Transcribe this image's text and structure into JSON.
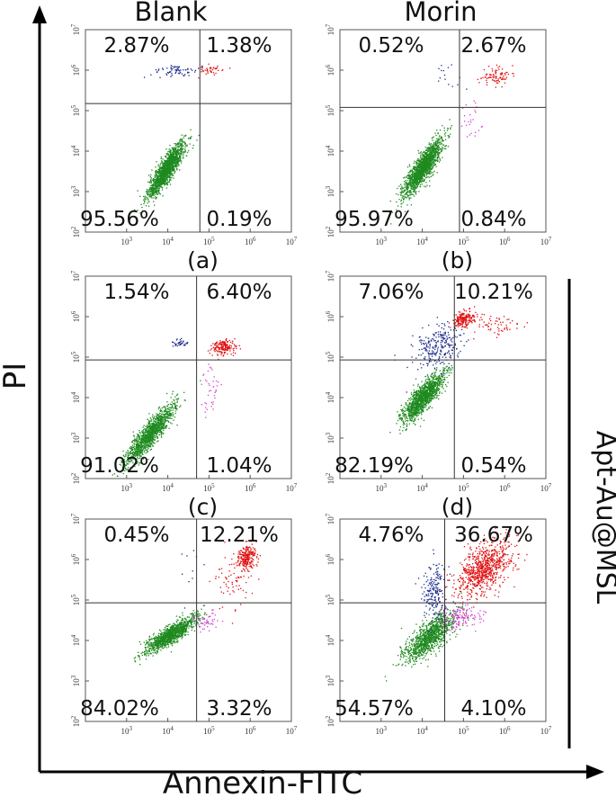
{
  "figure": {
    "y_axis_label": "PI",
    "x_axis_label": "Annexin-FITC",
    "side_label": "Apt-Au@MSL",
    "column_titles": [
      "Blank",
      "Morin"
    ]
  },
  "colors": {
    "live": "#1f8a1f",
    "late_apoptotic": "#e01010",
    "necrotic": "#1a2a8a",
    "early_apoptotic": "#d040d0",
    "axis": "#000000"
  },
  "chart_data": [
    {
      "type": "scatter",
      "panel_label": "(a)",
      "column_title": "Blank",
      "x_scale": "log",
      "y_scale": "log",
      "xlim": [
        100,
        10000000
      ],
      "ylim": [
        100,
        10000000
      ],
      "quadrant_gate": {
        "x": 60000,
        "y": 150000
      },
      "quadrants": {
        "upper_left": "2.87%",
        "upper_right": "1.38%",
        "lower_left": "95.56%",
        "lower_right": "0.19%"
      },
      "x_ticks": [
        "3",
        "4",
        "5",
        "6",
        "7"
      ],
      "y_ticks": [
        "2",
        "3",
        "4",
        "5",
        "6",
        "7"
      ]
    },
    {
      "type": "scatter",
      "panel_label": "(b)",
      "column_title": "Morin",
      "x_scale": "log",
      "y_scale": "log",
      "xlim": [
        100,
        10000000
      ],
      "ylim": [
        100,
        10000000
      ],
      "quadrant_gate": {
        "x": 80000,
        "y": 120000
      },
      "quadrants": {
        "upper_left": "0.52%",
        "upper_right": "2.67%",
        "lower_left": "95.97%",
        "lower_right": "0.84%"
      },
      "x_ticks": [
        "3",
        "4",
        "5",
        "6",
        "7"
      ],
      "y_ticks": [
        "2",
        "3",
        "4",
        "5",
        "6",
        "7"
      ]
    },
    {
      "type": "scatter",
      "panel_label": "(c)",
      "column_title": "",
      "x_scale": "log",
      "y_scale": "log",
      "xlim": [
        100,
        10000000
      ],
      "ylim": [
        100,
        10000000
      ],
      "quadrant_gate": {
        "x": 50000,
        "y": 85000
      },
      "quadrants": {
        "upper_left": "1.54%",
        "upper_right": "6.40%",
        "lower_left": "91.02%",
        "lower_right": "1.04%"
      },
      "x_ticks": [
        "3",
        "4",
        "5",
        "6",
        "7"
      ],
      "y_ticks": [
        "2",
        "3",
        "4",
        "5",
        "6",
        "7"
      ]
    },
    {
      "type": "scatter",
      "panel_label": "(d)",
      "column_title": "",
      "x_scale": "log",
      "y_scale": "log",
      "xlim": [
        100,
        10000000
      ],
      "ylim": [
        100,
        10000000
      ],
      "quadrant_gate": {
        "x": 60000,
        "y": 85000
      },
      "quadrants": {
        "upper_left": "7.06%",
        "upper_right": "10.21%",
        "lower_left": "82.19%",
        "lower_right": "0.54%"
      },
      "x_ticks": [
        "3",
        "4",
        "5",
        "6",
        "7"
      ],
      "y_ticks": [
        "2",
        "3",
        "4",
        "5",
        "6",
        "7"
      ]
    },
    {
      "type": "scatter",
      "panel_label": "",
      "column_title": "",
      "x_scale": "log",
      "y_scale": "log",
      "xlim": [
        100,
        10000000
      ],
      "ylim": [
        100,
        10000000
      ],
      "quadrant_gate": {
        "x": 50000,
        "y": 85000
      },
      "quadrants": {
        "upper_left": "0.45%",
        "upper_right": "12.21%",
        "lower_left": "84.02%",
        "lower_right": "3.32%"
      },
      "x_ticks": [
        "3",
        "4",
        "5",
        "6",
        "7"
      ],
      "y_ticks": [
        "2",
        "3",
        "4",
        "5",
        "6",
        "7"
      ]
    },
    {
      "type": "scatter",
      "panel_label": "",
      "column_title": "",
      "x_scale": "log",
      "y_scale": "log",
      "xlim": [
        100,
        10000000
      ],
      "ylim": [
        100,
        10000000
      ],
      "quadrant_gate": {
        "x": 35000,
        "y": 85000
      },
      "quadrants": {
        "upper_left": "4.76%",
        "upper_right": "36.67%",
        "lower_left": "54.57%",
        "lower_right": "4.10%"
      },
      "x_ticks": [
        "3",
        "4",
        "5",
        "6",
        "7"
      ],
      "y_ticks": [
        "2",
        "3",
        "4",
        "5",
        "6",
        "7"
      ]
    }
  ]
}
